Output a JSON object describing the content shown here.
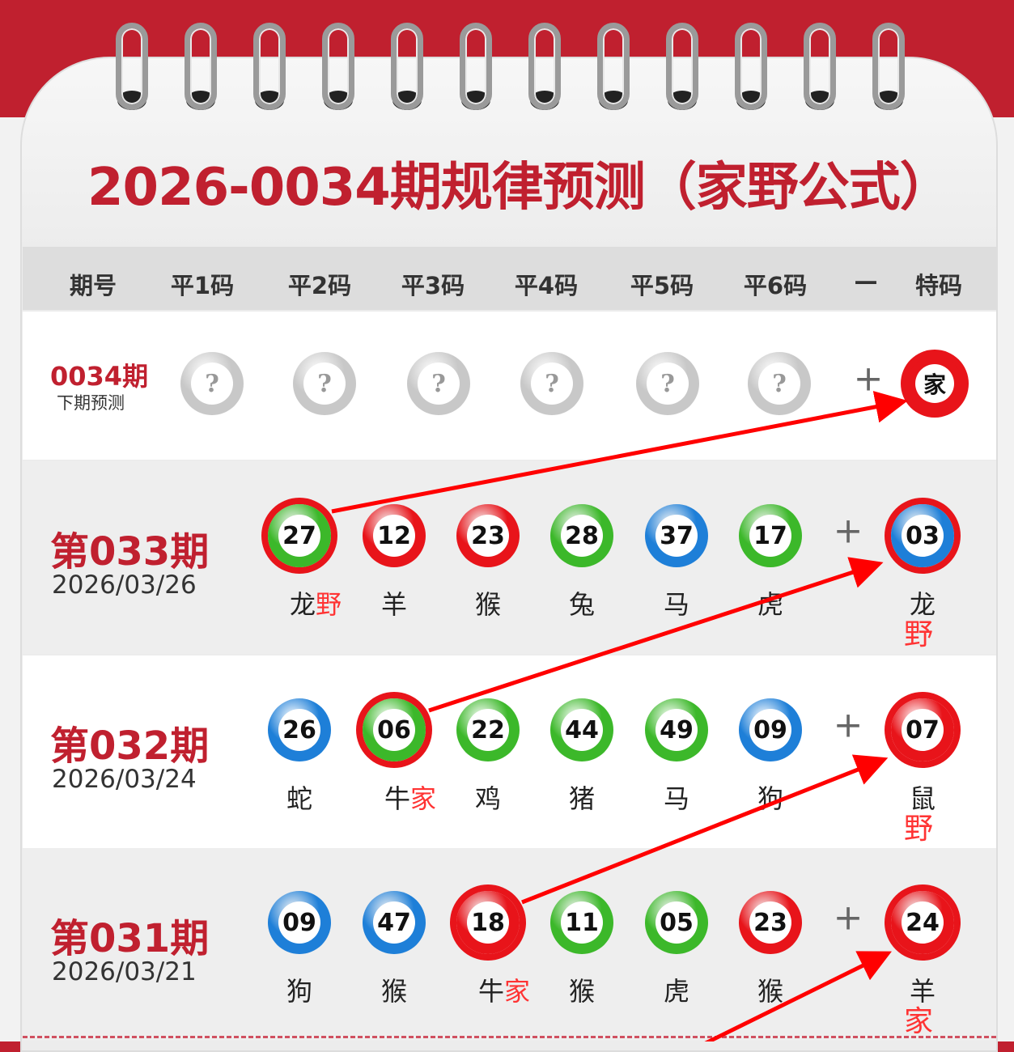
{
  "title": "2026-0034期规律预测（家野公式）",
  "headers": [
    "期号",
    "平1码",
    "平2码",
    "平3码",
    "平4码",
    "平5码",
    "平6码",
    "—",
    "特码"
  ],
  "colors": {
    "red": "#e8141a",
    "green": "#3cb82a",
    "blue": "#1e7fd8",
    "gray": "#c8c8c8",
    "accent": "#c0202f"
  },
  "next": {
    "period": "0034期",
    "label": "下期预测",
    "placeholder": "?",
    "plus": "+",
    "special": "家"
  },
  "draws": [
    {
      "period": "第033期",
      "date": "2026/03/26",
      "balls": [
        {
          "n": "27",
          "c": "green",
          "z": "龙",
          "tag": "野",
          "circled": true
        },
        {
          "n": "12",
          "c": "red",
          "z": "羊"
        },
        {
          "n": "23",
          "c": "red",
          "z": "猴"
        },
        {
          "n": "28",
          "c": "green",
          "z": "兔"
        },
        {
          "n": "37",
          "c": "blue",
          "z": "马"
        },
        {
          "n": "17",
          "c": "green",
          "z": "虎"
        }
      ],
      "plus": "+",
      "special": {
        "n": "03",
        "c": "blue",
        "z": "龙",
        "tag": "野",
        "circled": true
      }
    },
    {
      "period": "第032期",
      "date": "2026/03/24",
      "balls": [
        {
          "n": "26",
          "c": "blue",
          "z": "蛇"
        },
        {
          "n": "06",
          "c": "green",
          "z": "牛",
          "tag": "家",
          "circled": true
        },
        {
          "n": "22",
          "c": "green",
          "z": "鸡"
        },
        {
          "n": "44",
          "c": "green",
          "z": "猪"
        },
        {
          "n": "49",
          "c": "green",
          "z": "马"
        },
        {
          "n": "09",
          "c": "blue",
          "z": "狗"
        }
      ],
      "plus": "+",
      "special": {
        "n": "07",
        "c": "red",
        "z": "鼠",
        "tag": "野",
        "circled": true
      }
    },
    {
      "period": "第031期",
      "date": "2026/03/21",
      "balls": [
        {
          "n": "09",
          "c": "blue",
          "z": "狗"
        },
        {
          "n": "47",
          "c": "blue",
          "z": "猴"
        },
        {
          "n": "18",
          "c": "red",
          "z": "牛",
          "tag": "家",
          "circled": true
        },
        {
          "n": "11",
          "c": "green",
          "z": "猴"
        },
        {
          "n": "05",
          "c": "green",
          "z": "虎"
        },
        {
          "n": "23",
          "c": "red",
          "z": "猴"
        }
      ],
      "plus": "+",
      "special": {
        "n": "24",
        "c": "red",
        "z": "羊",
        "tag": "家",
        "circled": true
      }
    }
  ]
}
